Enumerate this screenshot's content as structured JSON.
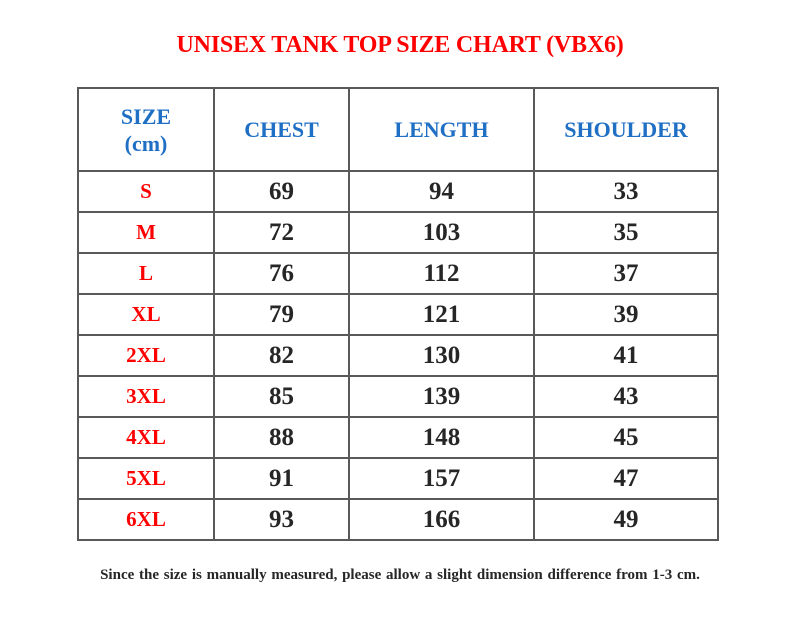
{
  "chart_data": {
    "type": "table",
    "title": "UNISEX TANK TOP SIZE CHART (VBX6)",
    "columns": [
      "SIZE\n(cm)",
      "CHEST",
      "LENGTH",
      "SHOULDER"
    ],
    "rows": [
      [
        "S",
        "69",
        "94",
        "33"
      ],
      [
        "M",
        "72",
        "103",
        "35"
      ],
      [
        "L",
        "76",
        "112",
        "37"
      ],
      [
        "XL",
        "79",
        "121",
        "39"
      ],
      [
        "2XL",
        "82",
        "130",
        "41"
      ],
      [
        "3XL",
        "85",
        "139",
        "43"
      ],
      [
        "4XL",
        "88",
        "148",
        "45"
      ],
      [
        "5XL",
        "91",
        "157",
        "47"
      ],
      [
        "6XL",
        "93",
        "166",
        "49"
      ]
    ],
    "note": "Since the size is manually measured, please allow a slight dimension difference from 1-3 cm.",
    "legend_position": "none",
    "grid": "full-borders"
  },
  "colors": {
    "title_red": "#FF0000",
    "size_label_red": "#FF0000",
    "header_blue": "#1F6FC4",
    "value_text": "#262626",
    "table_border": "#595959",
    "note_text": "#262626",
    "background": "#FFFFFF"
  }
}
